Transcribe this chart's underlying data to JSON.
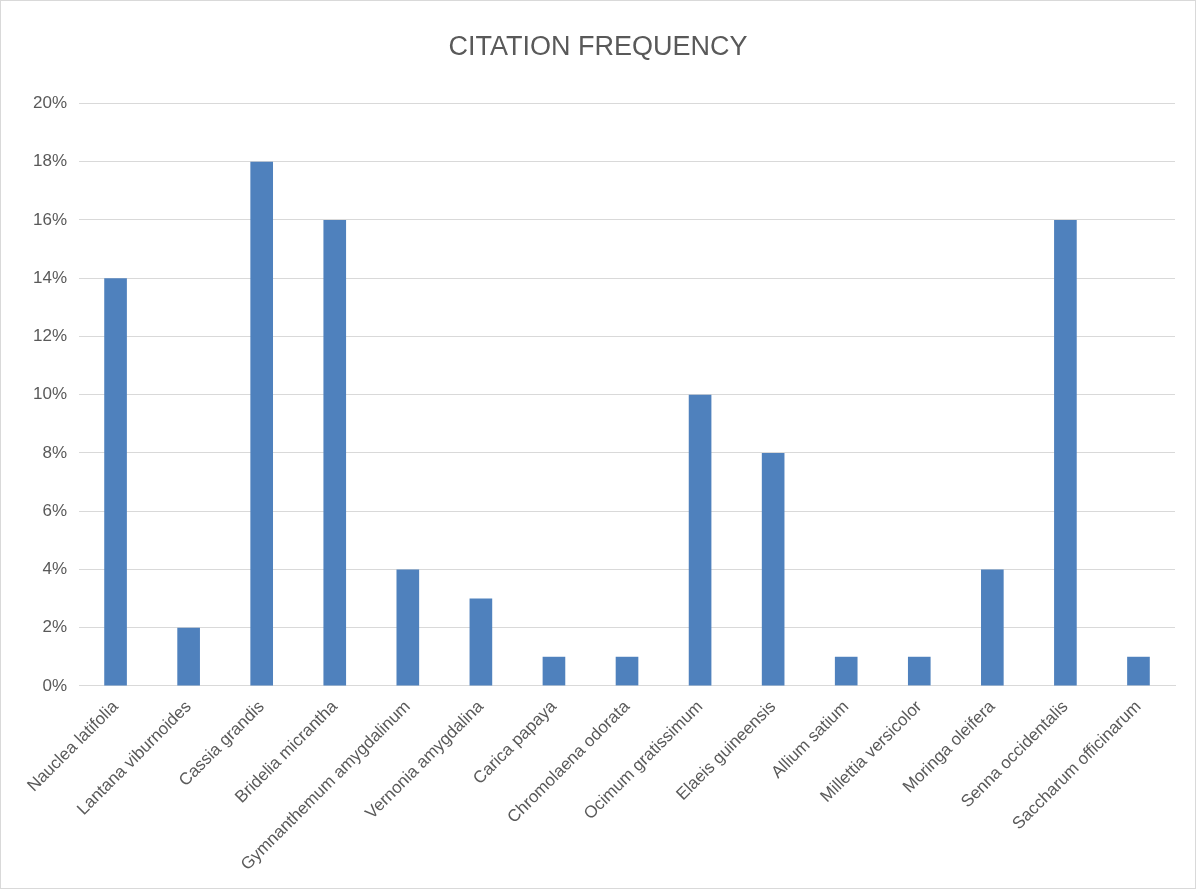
{
  "chart_data": {
    "type": "bar",
    "title": "CITATION FREQUENCY",
    "categories": [
      "Nauclea latifolia",
      "Lantana viburnoides",
      "Cassia grandis",
      "Bridelia micrantha",
      "Gymnanthemum amygdalinum",
      "Vernonia amygdalina",
      "Carica papaya",
      "Chromolaena odorata",
      "Ocimum gratissimum",
      "Elaeis guineensis",
      "Allium satium",
      "Millettia versicolor",
      "Moringa oleifera",
      "Senna occidentalis",
      "Saccharum officinarum"
    ],
    "values": [
      14,
      2,
      18,
      16,
      4,
      3,
      1,
      1,
      10,
      8,
      1,
      1,
      4,
      16,
      1
    ],
    "color": "#4f81bd",
    "ylim": [
      0,
      20
    ],
    "yticks": [
      {
        "value": 0,
        "label": "0%"
      },
      {
        "value": 2,
        "label": "2%"
      },
      {
        "value": 4,
        "label": "4%"
      },
      {
        "value": 6,
        "label": "6%"
      },
      {
        "value": 8,
        "label": "8%"
      },
      {
        "value": 10,
        "label": "10%"
      },
      {
        "value": 12,
        "label": "12%"
      },
      {
        "value": 14,
        "label": "14%"
      },
      {
        "value": 16,
        "label": "16%"
      },
      {
        "value": 18,
        "label": "18%"
      },
      {
        "value": 20,
        "label": "20%"
      }
    ],
    "grid": true
  }
}
